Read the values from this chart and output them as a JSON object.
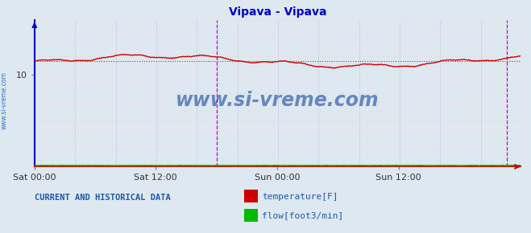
{
  "title": "Vipava - Vipava",
  "title_color": "#0000cc",
  "bg_color": "#dde8f0",
  "plot_bg_color": "#dde8f0",
  "xlim": [
    0,
    575
  ],
  "ylim": [
    0,
    16.0
  ],
  "ytick_val": 10,
  "xtick_labels": [
    "Sat 00:00",
    "Sat 12:00",
    "Sun 00:00",
    "Sun 12:00"
  ],
  "xtick_positions": [
    0,
    143,
    287,
    431
  ],
  "temp_color": "#cc0000",
  "flow_color": "#00bb00",
  "vline_color": "#cc00cc",
  "watermark": "www.si-vreme.com",
  "watermark_color": "#2255aa",
  "side_text": "www.si-vreme.com",
  "side_text_color": "#2266cc",
  "legend_text1": "temperature[F]",
  "legend_text2": "flow[foot3/min]",
  "legend_color": "#2255aa",
  "footer_text": "CURRENT AND HISTORICAL DATA",
  "footer_color": "#2255aa",
  "vline_x1": 216,
  "vline_x2": 559,
  "temp_base": 11.5,
  "temp_amp1": 0.55,
  "temp_amp2": 0.2,
  "flow_val": 0.12
}
